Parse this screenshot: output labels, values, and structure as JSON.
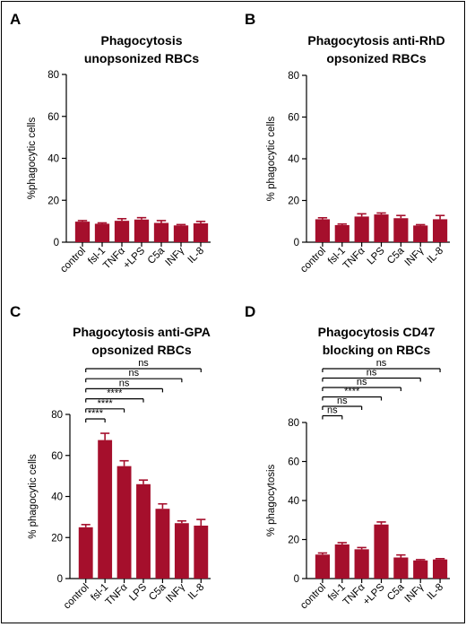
{
  "chart_data": [
    {
      "type": "bar",
      "panel_letter": "A",
      "title_lines": [
        "Phagocytosis",
        "unopsonized RBCs"
      ],
      "ylabel": "%phagocytic cells",
      "ylim": [
        0,
        80
      ],
      "yticks": [
        0,
        20,
        40,
        60,
        80
      ],
      "categories": [
        "control",
        "fsl-1",
        "TNFα",
        "+LPS",
        "C5a",
        "INFγ",
        "IL-8"
      ],
      "values": [
        9.8,
        8.8,
        10.2,
        10.8,
        9.2,
        8.0,
        9.0
      ],
      "errors": [
        0.5,
        0.4,
        1.0,
        0.9,
        1.1,
        0.4,
        0.9
      ],
      "significance": []
    },
    {
      "type": "bar",
      "panel_letter": "B",
      "title_lines": [
        "Phagocytosis anti-RhD",
        "opsonized RBCs"
      ],
      "ylabel": "% phagocytic cells",
      "ylim": [
        0,
        80
      ],
      "yticks": [
        0,
        20,
        40,
        60,
        80
      ],
      "categories": [
        "control",
        "fsl-1",
        "TNFα",
        "LPS",
        "C5a",
        "INFγ",
        "IL-8"
      ],
      "values": [
        11.0,
        8.2,
        12.3,
        13.3,
        11.5,
        8.0,
        11.0
      ],
      "errors": [
        0.7,
        0.5,
        1.3,
        0.7,
        1.3,
        0.4,
        1.8
      ],
      "significance": []
    },
    {
      "type": "bar",
      "panel_letter": "C",
      "title_lines": [
        "Phagocytosis anti-GPA",
        "opsonized RBCs"
      ],
      "ylabel": "% phagocytic cells",
      "ylim": [
        0,
        80
      ],
      "yticks": [
        0,
        20,
        40,
        60,
        80
      ],
      "categories": [
        "control",
        "fsl-1",
        "TNFα",
        "LPS",
        "C5a",
        "INFγ",
        "IL-8"
      ],
      "values": [
        25.0,
        67.5,
        54.8,
        46.0,
        34.0,
        27.0,
        25.8
      ],
      "errors": [
        1.3,
        3.3,
        2.6,
        2.0,
        2.4,
        1.1,
        3.0
      ],
      "significance": [
        {
          "from": 0,
          "to": 1,
          "label": "****"
        },
        {
          "from": 0,
          "to": 2,
          "label": "****"
        },
        {
          "from": 0,
          "to": 3,
          "label": "****"
        },
        {
          "from": 0,
          "to": 4,
          "label": "ns"
        },
        {
          "from": 0,
          "to": 5,
          "label": "ns"
        },
        {
          "from": 0,
          "to": 6,
          "label": "ns"
        }
      ]
    },
    {
      "type": "bar",
      "panel_letter": "D",
      "title_lines": [
        "Phagocytosis CD47",
        "blocking on RBCs"
      ],
      "ylabel": "% phagocytosis",
      "ylim": [
        0,
        80
      ],
      "yticks": [
        0,
        20,
        40,
        60,
        80
      ],
      "categories": [
        "control",
        "fsl-1",
        "TNFα",
        "+LPS",
        "C5a",
        "INFγ",
        "IL-8"
      ],
      "values": [
        12.3,
        17.5,
        15.0,
        27.7,
        10.8,
        9.3,
        9.8
      ],
      "errors": [
        0.8,
        0.9,
        0.9,
        1.3,
        1.3,
        0.4,
        0.4
      ],
      "significance": [
        {
          "from": 0,
          "to": 1,
          "label": "ns"
        },
        {
          "from": 0,
          "to": 2,
          "label": "ns"
        },
        {
          "from": 0,
          "to": 3,
          "label": "****"
        },
        {
          "from": 0,
          "to": 4,
          "label": "ns"
        },
        {
          "from": 0,
          "to": 5,
          "label": "ns"
        },
        {
          "from": 0,
          "to": 6,
          "label": "ns"
        }
      ]
    }
  ],
  "colors": {
    "bar": "#a50f2c",
    "axis": "#000000",
    "text": "#000000"
  }
}
